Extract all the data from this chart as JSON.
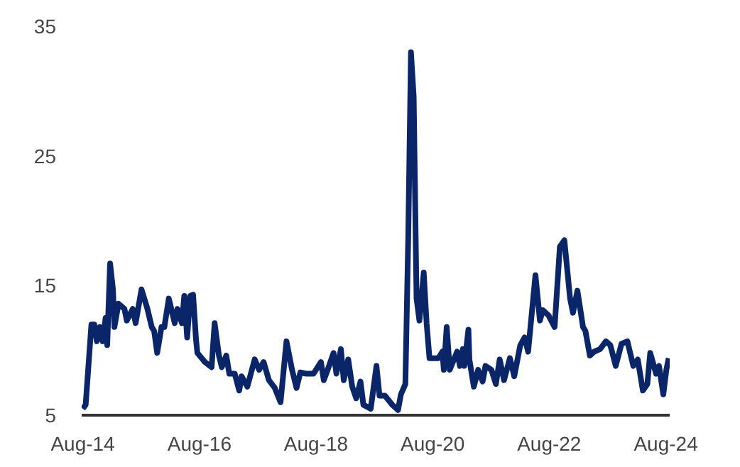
{
  "chart_data": {
    "type": "line",
    "xlim": [
      "2014-07-25",
      "2024-08-25"
    ],
    "ylim": [
      5,
      35
    ],
    "yticks": [
      5,
      15,
      25,
      35
    ],
    "xticks": [
      {
        "value": "2014-08-01",
        "label": "Aug-14"
      },
      {
        "value": "2016-08-01",
        "label": "Aug-16"
      },
      {
        "value": "2018-08-01",
        "label": "Aug-18"
      },
      {
        "value": "2020-08-01",
        "label": "Aug-20"
      },
      {
        "value": "2022-08-01",
        "label": "Aug-22"
      },
      {
        "value": "2024-08-01",
        "label": "Aug-24"
      }
    ],
    "series": [
      {
        "color": "#0b2569",
        "x": [
          "2014-08-01",
          "2014-08-19",
          "2014-09-24",
          "2014-10-12",
          "2014-10-28",
          "2014-11-16",
          "2014-12-04",
          "2014-12-22",
          "2015-01-01",
          "2015-01-19",
          "2015-02-06",
          "2015-02-15",
          "2015-03-13",
          "2015-04-19",
          "2015-05-04",
          "2015-06-10",
          "2015-06-28",
          "2015-08-04",
          "2015-09-10",
          "2015-10-07",
          "2015-10-22",
          "2015-11-10",
          "2015-12-07",
          "2015-12-25",
          "2016-01-22",
          "2016-02-28",
          "2016-03-16",
          "2016-04-13",
          "2016-04-28",
          "2016-05-16",
          "2016-06-04",
          "2016-06-22",
          "2016-07-10",
          "2016-07-19",
          "2016-09-04",
          "2016-10-16",
          "2016-11-04",
          "2016-12-01",
          "2016-12-19",
          "2017-01-16",
          "2017-02-04",
          "2017-03-10",
          "2017-04-07",
          "2017-04-22",
          "2017-05-28",
          "2017-07-13",
          "2017-08-10",
          "2017-09-07",
          "2017-10-10",
          "2017-11-16",
          "2017-12-22",
          "2018-01-28",
          "2018-03-04",
          "2018-04-01",
          "2018-04-25",
          "2018-06-01",
          "2018-07-16",
          "2018-09-01",
          "2018-09-19",
          "2018-10-13",
          "2018-11-19",
          "2018-12-07",
          "2019-01-04",
          "2019-01-22",
          "2019-02-19",
          "2019-03-16",
          "2019-04-10",
          "2019-05-07",
          "2019-05-25",
          "2019-07-10",
          "2019-08-15",
          "2019-09-03",
          "2019-10-07",
          "2019-11-22",
          "2019-12-28",
          "2020-01-15",
          "2020-02-12",
          "2020-03-01",
          "2020-03-18",
          "2020-04-04",
          "2020-04-22",
          "2020-05-10",
          "2020-06-06",
          "2020-06-24",
          "2020-07-12",
          "2020-09-06",
          "2020-10-01",
          "2020-10-10",
          "2020-10-28",
          "2020-11-16",
          "2021-01-01",
          "2021-01-19",
          "2021-02-06",
          "2021-02-15",
          "2021-03-13",
          "2021-03-19",
          "2021-04-16",
          "2021-05-13",
          "2021-06-10",
          "2021-06-28",
          "2021-08-04",
          "2021-09-01",
          "2021-09-25",
          "2021-10-22",
          "2021-11-28",
          "2021-12-25",
          "2022-02-01",
          "2022-02-28",
          "2022-03-22",
          "2022-05-07",
          "2022-06-04",
          "2022-06-22",
          "2022-07-28",
          "2022-09-04",
          "2022-10-07",
          "2022-11-04",
          "2022-12-10",
          "2022-12-28",
          "2023-01-25",
          "2023-03-01",
          "2023-03-16",
          "2023-04-13",
          "2023-05-10",
          "2023-06-16",
          "2023-07-22",
          "2023-08-19",
          "2023-09-22",
          "2023-10-28",
          "2023-12-04",
          "2024-01-10",
          "2024-02-07",
          "2024-03-10",
          "2024-04-07",
          "2024-04-25",
          "2024-06-01",
          "2024-06-19",
          "2024-07-16",
          "2024-08-04",
          "2024-08-19"
        ],
        "values": [
          5.5,
          5.8,
          12.0,
          12.0,
          10.7,
          11.8,
          10.7,
          12.5,
          10.4,
          16.7,
          14.7,
          11.8,
          13.6,
          13.2,
          12.3,
          13.2,
          12.1,
          14.7,
          13.2,
          11.8,
          11.5,
          9.8,
          11.8,
          11.8,
          14.0,
          12.1,
          13.2,
          12.1,
          14.2,
          11.0,
          14.2,
          14.3,
          10.9,
          9.8,
          9.1,
          8.7,
          12.1,
          9.6,
          8.7,
          9.6,
          8.2,
          8.2,
          6.9,
          8.0,
          7.2,
          9.3,
          8.5,
          9.1,
          7.7,
          7.1,
          6.0,
          10.7,
          8.5,
          7.1,
          8.3,
          8.2,
          8.2,
          9.1,
          7.7,
          8.5,
          9.8,
          8.2,
          10.1,
          7.7,
          9.3,
          7.2,
          6.3,
          7.6,
          5.8,
          5.5,
          8.8,
          6.5,
          6.5,
          5.8,
          5.4,
          6.6,
          7.4,
          18.7,
          33.0,
          29.6,
          14.0,
          12.3,
          16.0,
          12.1,
          9.4,
          9.4,
          9.9,
          8.5,
          11.8,
          8.5,
          9.9,
          8.8,
          10.1,
          8.8,
          11.6,
          9.3,
          7.2,
          8.5,
          7.6,
          8.8,
          8.5,
          7.4,
          9.3,
          7.7,
          9.4,
          8.0,
          10.4,
          11.0,
          9.9,
          15.8,
          12.3,
          13.1,
          12.7,
          11.8,
          18.0,
          18.5,
          14.0,
          12.9,
          14.6,
          11.8,
          11.5,
          9.6,
          9.9,
          10.1,
          10.7,
          10.4,
          8.8,
          10.5,
          10.7,
          8.8,
          9.3,
          6.9,
          7.4,
          9.8,
          8.2,
          8.8,
          6.6,
          8.5,
          9.4
        ]
      }
    ]
  }
}
